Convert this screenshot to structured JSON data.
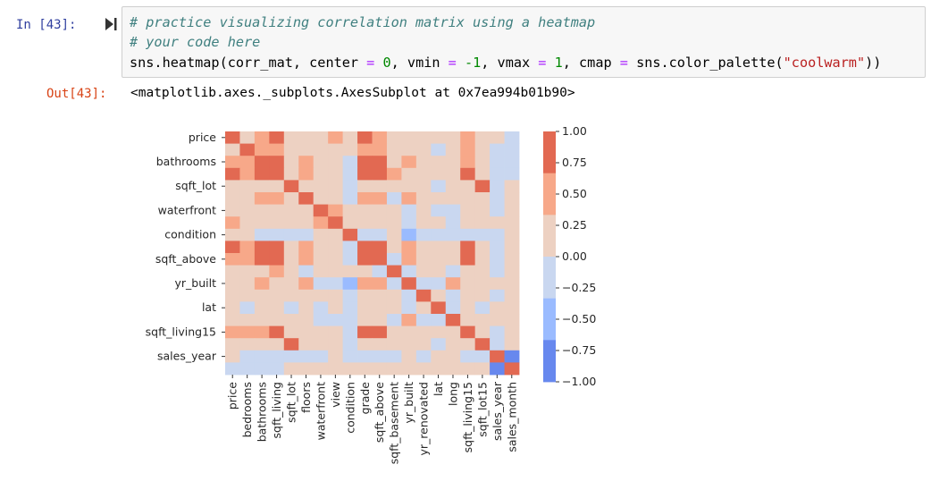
{
  "cell": {
    "in_prompt": "In [43]:",
    "out_prompt": "Out[43]:",
    "code": {
      "comment1": "# practice visualizing correlation matrix using a heatmap",
      "comment2": "# your code here",
      "l3_a": "sns.heatmap(corr_mat, center ",
      "eq": "=",
      "zero": "0",
      "l3_b": ", vmin ",
      "neg1": "-1",
      "l3_c": ", vmax ",
      "one": "1",
      "l3_d": ", cmap ",
      "l3_e": " sns.color_palette(",
      "str": "\"coolwarm\"",
      "l3_f": "))"
    },
    "output_text": "<matplotlib.axes._subplots.AxesSubplot at 0x7ea994b01b90>"
  },
  "chart_data": {
    "type": "heatmap",
    "title": "",
    "vmin": -1,
    "vmax": 1,
    "center": 0,
    "colorbar_ticks": [
      "1.00",
      "0.75",
      "0.50",
      "0.25",
      "0.00",
      "−0.25",
      "−0.50",
      "−0.75",
      "−1.00"
    ],
    "palette": [
      "#6788ee",
      "#9abbff",
      "#c9d7f0",
      "#edd1c2",
      "#f7a889",
      "#e26952"
    ],
    "x_labels": [
      "price",
      "bedrooms",
      "bathrooms",
      "sqft_living",
      "sqft_lot",
      "floors",
      "waterfront",
      "view",
      "condition",
      "grade",
      "sqft_above",
      "sqft_basement",
      "yr_built",
      "yr_renovated",
      "lat",
      "long",
      "sqft_living15",
      "sqft_lot15",
      "sales_year",
      "sales_month"
    ],
    "y_labels": [
      "price",
      "",
      "bathrooms",
      "",
      "sqft_lot",
      "",
      "waterfront",
      "",
      "condition",
      "",
      "sqft_above",
      "",
      "yr_built",
      "",
      "lat",
      "",
      "sqft_living15",
      "",
      "sales_year",
      ""
    ],
    "matrix": [
      [
        0.9,
        0.3,
        0.5,
        0.7,
        0.1,
        0.25,
        0.25,
        0.4,
        0.05,
        0.7,
        0.6,
        0.3,
        0.05,
        0.1,
        0.3,
        0.02,
        0.6,
        0.1,
        0.0,
        -0.01
      ],
      [
        0.3,
        0.9,
        0.5,
        0.6,
        0.03,
        0.2,
        0.0,
        0.1,
        0.03,
        0.4,
        0.5,
        0.3,
        0.15,
        0.02,
        -0.01,
        0.1,
        0.4,
        0.03,
        -0.01,
        -0.01
      ],
      [
        0.5,
        0.5,
        0.9,
        0.8,
        0.1,
        0.5,
        0.06,
        0.2,
        -0.1,
        0.7,
        0.7,
        0.3,
        0.5,
        0.05,
        0.02,
        0.2,
        0.6,
        0.1,
        -0.03,
        -0.01
      ],
      [
        0.7,
        0.6,
        0.8,
        0.9,
        0.2,
        0.4,
        0.1,
        0.3,
        -0.06,
        0.8,
        0.9,
        0.4,
        0.3,
        0.05,
        0.05,
        0.25,
        0.8,
        0.2,
        -0.03,
        -0.01
      ],
      [
        0.1,
        0.03,
        0.1,
        0.2,
        0.9,
        0.0,
        0.02,
        0.07,
        -0.01,
        0.1,
        0.2,
        0.02,
        0.05,
        0.01,
        -0.1,
        0.2,
        0.15,
        0.7,
        -0.01,
        0.0
      ],
      [
        0.25,
        0.2,
        0.5,
        0.4,
        0.0,
        0.9,
        0.02,
        0.03,
        -0.26,
        0.5,
        0.5,
        -0.25,
        0.5,
        0.0,
        0.05,
        0.1,
        0.3,
        0.0,
        -0.02,
        0.01
      ],
      [
        0.25,
        0.0,
        0.06,
        0.1,
        0.02,
        0.02,
        0.9,
        0.4,
        0.02,
        0.1,
        0.07,
        0.1,
        -0.03,
        0.1,
        -0.01,
        -0.04,
        0.09,
        0.03,
        -0.01,
        0.01
      ],
      [
        0.4,
        0.1,
        0.2,
        0.3,
        0.07,
        0.03,
        0.4,
        0.9,
        0.05,
        0.25,
        0.17,
        0.27,
        -0.05,
        0.1,
        0.0,
        -0.08,
        0.28,
        0.07,
        0.0,
        0.0
      ],
      [
        0.05,
        0.03,
        -0.1,
        -0.06,
        -0.01,
        -0.26,
        0.02,
        0.05,
        0.9,
        -0.15,
        -0.16,
        0.17,
        -0.36,
        -0.06,
        -0.01,
        -0.1,
        -0.1,
        -0.01,
        -0.05,
        0.02
      ],
      [
        0.7,
        0.4,
        0.7,
        0.8,
        0.1,
        0.5,
        0.1,
        0.25,
        -0.15,
        0.9,
        0.8,
        0.17,
        0.45,
        0.01,
        0.11,
        0.2,
        0.7,
        0.12,
        -0.03,
        0.01
      ],
      [
        0.6,
        0.5,
        0.7,
        0.9,
        0.2,
        0.5,
        0.07,
        0.17,
        -0.16,
        0.8,
        0.9,
        -0.05,
        0.4,
        0.02,
        0.0,
        0.3,
        0.7,
        0.2,
        -0.02,
        0.01
      ],
      [
        0.3,
        0.3,
        0.3,
        0.4,
        0.02,
        -0.25,
        0.1,
        0.27,
        0.17,
        0.17,
        -0.05,
        0.9,
        -0.13,
        0.07,
        0.1,
        -0.14,
        0.2,
        0.02,
        -0.02,
        0.0
      ],
      [
        0.05,
        0.15,
        0.5,
        0.3,
        0.05,
        0.5,
        -0.03,
        -0.05,
        -0.36,
        0.45,
        0.4,
        -0.13,
        0.9,
        -0.2,
        -0.15,
        0.4,
        0.3,
        0.07,
        0.0,
        0.0
      ],
      [
        0.1,
        0.02,
        0.05,
        0.05,
        0.01,
        0.0,
        0.1,
        0.1,
        -0.06,
        0.01,
        0.02,
        0.07,
        -0.2,
        0.9,
        0.03,
        -0.07,
        0.0,
        0.01,
        -0.02,
        0.01
      ],
      [
        0.3,
        -0.01,
        0.02,
        0.05,
        -0.1,
        0.05,
        -0.01,
        0.0,
        -0.01,
        0.11,
        0.0,
        0.1,
        -0.15,
        0.03,
        0.9,
        -0.14,
        0.05,
        -0.09,
        0.0,
        0.01
      ],
      [
        0.02,
        0.1,
        0.2,
        0.25,
        0.2,
        0.1,
        -0.04,
        -0.08,
        -0.1,
        0.2,
        0.3,
        -0.14,
        0.4,
        -0.07,
        -0.14,
        0.9,
        0.3,
        0.25,
        0.0,
        0.0
      ],
      [
        0.6,
        0.4,
        0.6,
        0.8,
        0.15,
        0.3,
        0.09,
        0.28,
        -0.1,
        0.7,
        0.7,
        0.2,
        0.3,
        0.0,
        0.05,
        0.3,
        0.9,
        0.2,
        -0.02,
        0.0
      ],
      [
        0.1,
        0.03,
        0.1,
        0.2,
        0.7,
        0.0,
        0.03,
        0.07,
        -0.01,
        0.12,
        0.2,
        0.02,
        0.07,
        0.01,
        -0.09,
        0.25,
        0.2,
        0.9,
        -0.01,
        0.0
      ],
      [
        0.0,
        -0.01,
        -0.03,
        -0.03,
        -0.01,
        -0.02,
        -0.01,
        0.0,
        -0.05,
        -0.03,
        -0.02,
        -0.02,
        0.0,
        -0.02,
        0.0,
        0.0,
        -0.02,
        -0.01,
        0.9,
        -0.8
      ],
      [
        -0.01,
        -0.01,
        -0.01,
        -0.01,
        0.0,
        0.01,
        0.01,
        0.0,
        0.02,
        0.01,
        0.01,
        0.0,
        0.0,
        0.01,
        0.01,
        0.0,
        0.0,
        0.0,
        -0.8,
        0.9
      ]
    ]
  }
}
